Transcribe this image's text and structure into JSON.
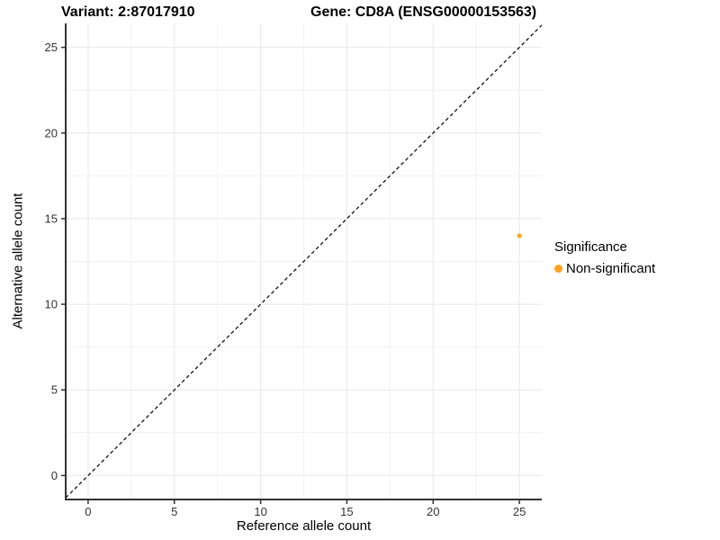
{
  "titles": {
    "variant": "Variant: 2:87017910",
    "gene": "Gene: CD8A (ENSG00000153563)"
  },
  "axes": {
    "x_label": "Reference allele count",
    "y_label": "Alternative allele count"
  },
  "legend": {
    "title": "Significance",
    "items": [
      {
        "label": "Non-significant",
        "color": "#FFA320"
      }
    ]
  },
  "colors": {
    "point": "#FFA320",
    "axis_line": "#333333",
    "tick_label": "#333333",
    "grid_major": "#e7e7e7",
    "grid_minor": "#f2f2f2",
    "identity_line": "#111111",
    "background": "#ffffff"
  },
  "chart_data": {
    "type": "scatter",
    "title": "Variant: 2:87017910  |  Gene: CD8A (ENSG00000153563)",
    "xlabel": "Reference allele count",
    "ylabel": "Alternative allele count",
    "xlim": [
      -1.3,
      26.3
    ],
    "ylim": [
      -1.4,
      26.4
    ],
    "xticks": [
      0,
      5,
      10,
      15,
      20,
      25
    ],
    "yticks": [
      0,
      5,
      10,
      15,
      20,
      25
    ],
    "minor_tick_interval": 2.5,
    "grid": true,
    "legend_position": "right",
    "reference_line": {
      "type": "identity-diagonal",
      "equation": "y = x",
      "style": "dashed",
      "color": "#111111"
    },
    "series": [
      {
        "name": "Non-significant",
        "color": "#FFA320",
        "points": [
          {
            "x": 25,
            "y": 14
          }
        ]
      }
    ]
  }
}
